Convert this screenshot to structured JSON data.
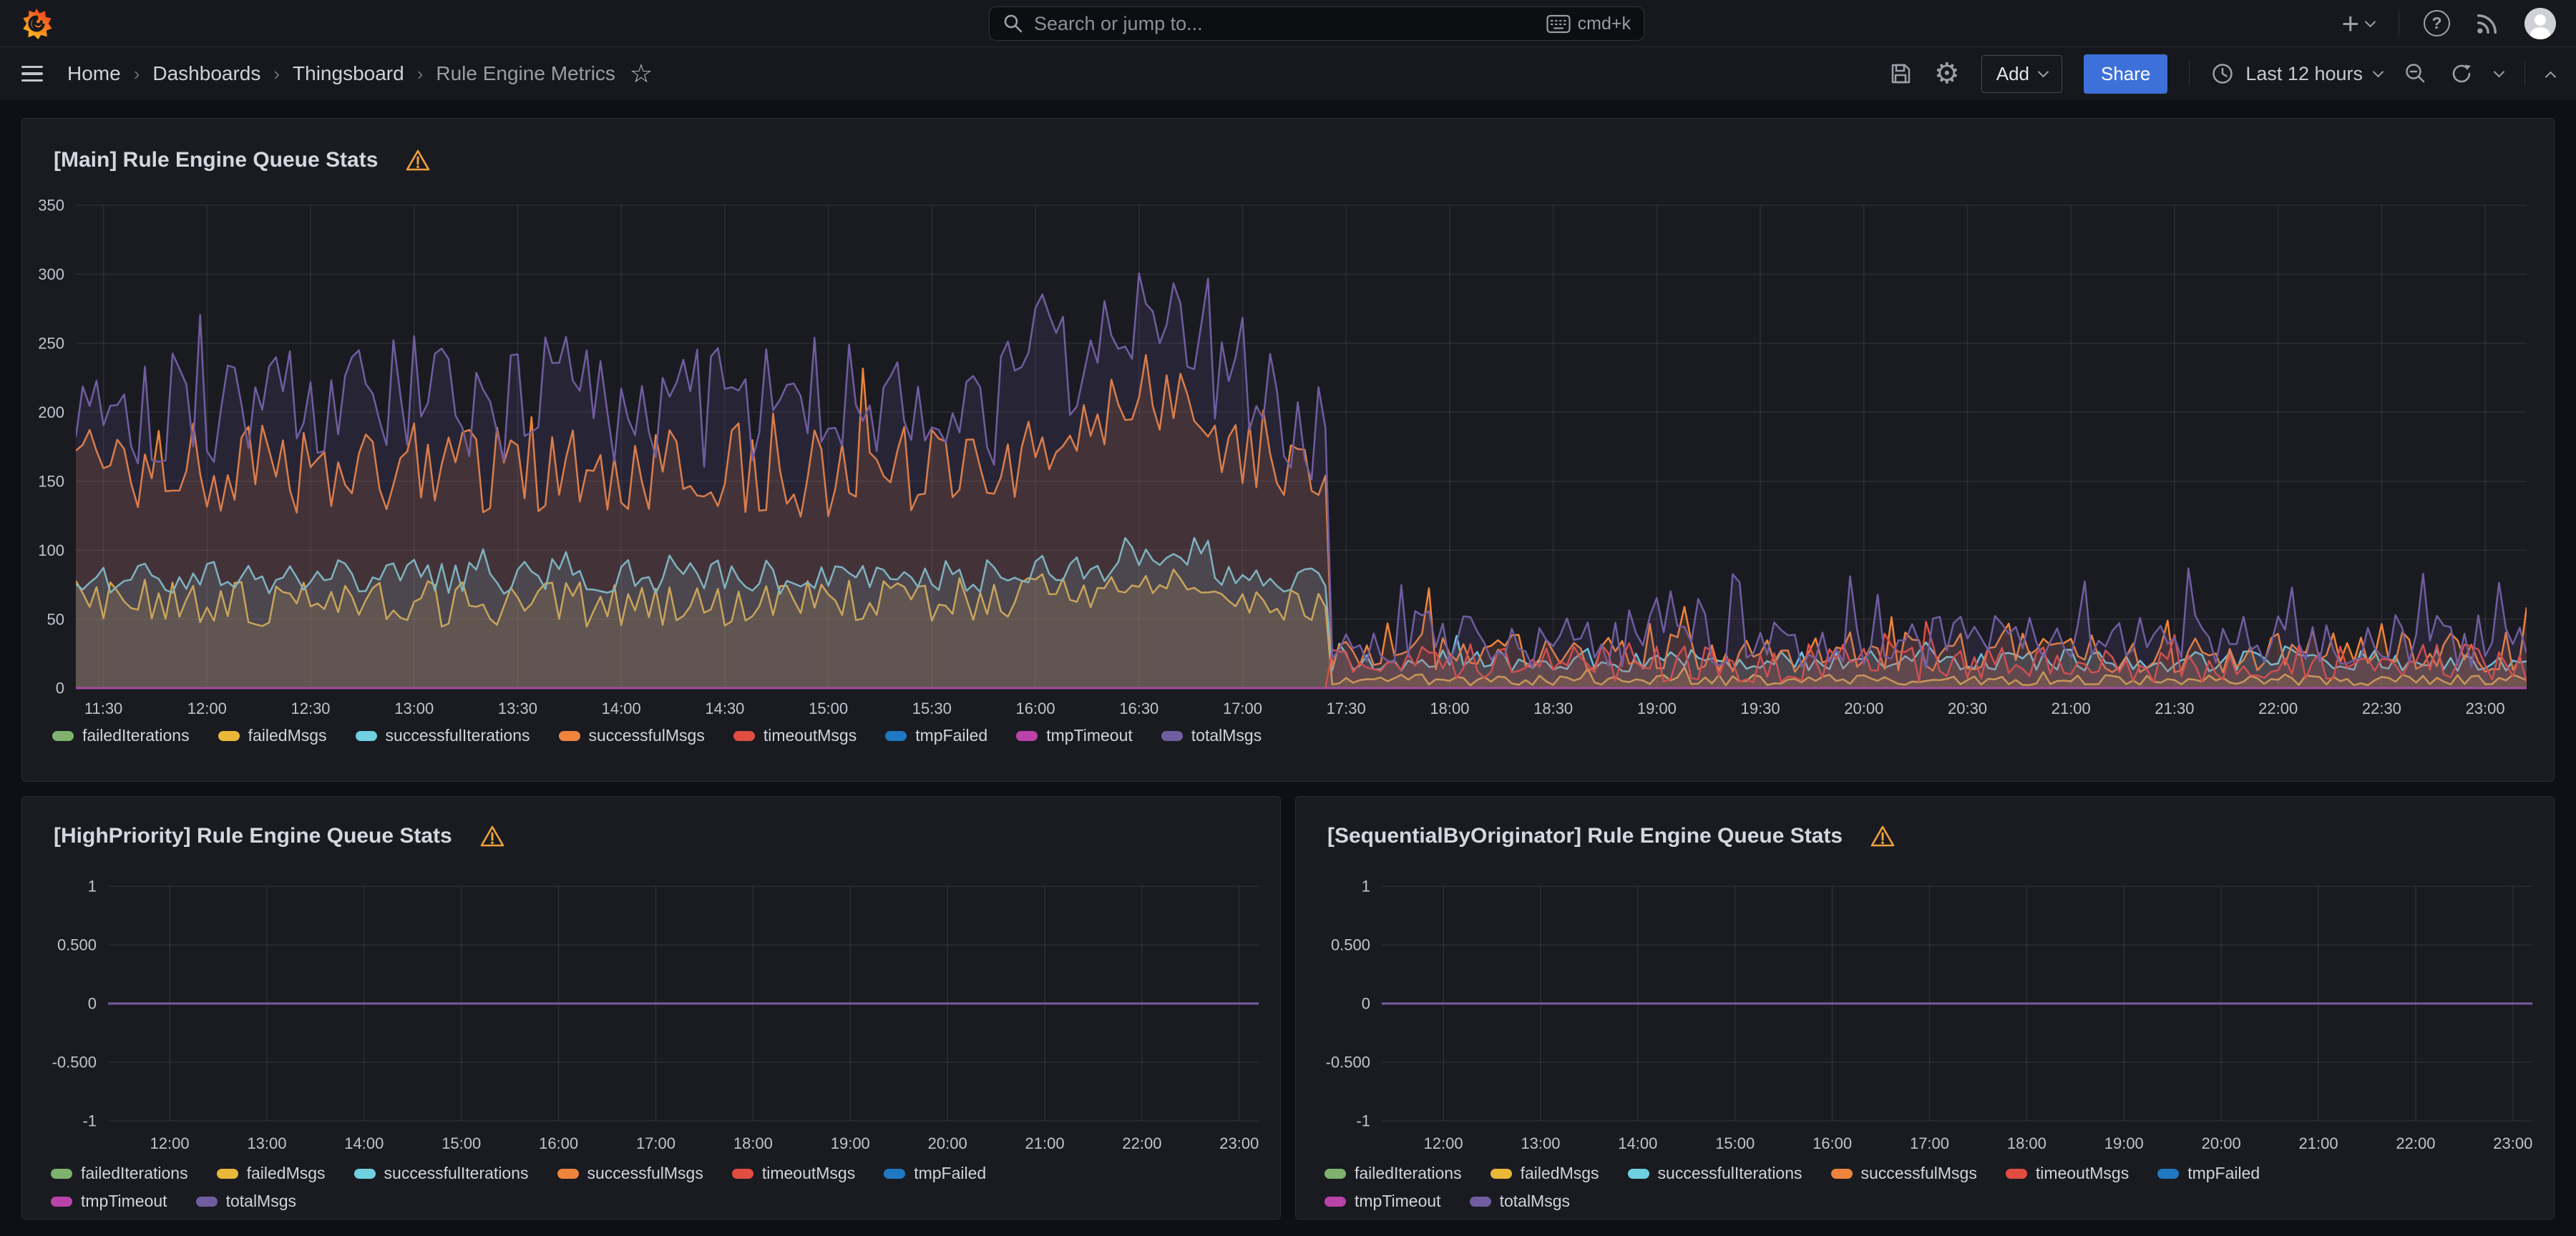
{
  "topbar": {
    "search_placeholder": "Search or jump to...",
    "shortcut": "cmd+k"
  },
  "breadcrumbs": {
    "separator": "›",
    "items": [
      {
        "label": "Home"
      },
      {
        "label": "Dashboards"
      },
      {
        "label": "Thingsboard"
      },
      {
        "label": "Rule Engine Metrics"
      }
    ]
  },
  "toolbar": {
    "add_label": "Add",
    "share_label": "Share",
    "time_range_label": "Last 12 hours"
  },
  "icons": {
    "gear": "⚙",
    "star": "☆",
    "plus": "+",
    "help": "?"
  },
  "colors": {
    "accent_blue": "#3D71D9",
    "warning_orange": "#F0A13C",
    "page_bg": "#0F1015",
    "panel_bg": "#1A1B21",
    "grid": "rgba(204,204,220,0.10)"
  },
  "chart_data": [
    {
      "id": "main",
      "type": "line",
      "title": "[Main] Rule Engine Queue Stats",
      "x_domain_minutes": [
        682,
        1392
      ],
      "step_minutes": 2,
      "x_tick_minutes": [
        690,
        720,
        750,
        780,
        810,
        840,
        870,
        900,
        930,
        960,
        990,
        1020,
        1050,
        1080,
        1110,
        1140,
        1170,
        1200,
        1230,
        1260,
        1290,
        1320,
        1350,
        1380
      ],
      "x_tick_labels": [
        "11:30",
        "12:00",
        "12:30",
        "13:00",
        "13:30",
        "14:00",
        "14:30",
        "15:00",
        "15:30",
        "16:00",
        "16:30",
        "17:00",
        "17:30",
        "18:00",
        "18:30",
        "19:00",
        "19:30",
        "20:00",
        "20:30",
        "21:00",
        "21:30",
        "22:00",
        "22:30",
        "23:00"
      ],
      "ylim": [
        0,
        350
      ],
      "y_tick_values": [
        0,
        50,
        100,
        150,
        200,
        250,
        300,
        350
      ],
      "y_tick_labels": [
        "0",
        "50",
        "100",
        "150",
        "200",
        "250",
        "300",
        "350"
      ],
      "grid": true,
      "legend_position": "bottom",
      "series": [
        {
          "name": "failedIterations",
          "color": "#7EB26D",
          "seed": 100,
          "fill_opacity": 0.16,
          "segments": [
            [
              682,
              1392,
              0,
              0,
              0,
              0
            ]
          ]
        },
        {
          "name": "failedMsgs",
          "color": "#EAB839",
          "seed": 104,
          "fill_opacity": 0.16,
          "segments": [
            [
              682,
              955,
              61,
              17,
              0.02,
              18
            ],
            [
              955,
              985,
              70,
              15,
              0,
              0
            ],
            [
              985,
              1012,
              80,
              12,
              0,
              0
            ],
            [
              1012,
              1046,
              58,
              14,
              0,
              0
            ],
            [
              1046,
              1392,
              6,
              4,
              0.06,
              8
            ]
          ]
        },
        {
          "name": "successfulIterations",
          "color": "#6ED0E0",
          "seed": 103,
          "fill_opacity": 0.16,
          "segments": [
            [
              682,
              955,
              81,
              13,
              0.02,
              18
            ],
            [
              955,
              985,
              88,
              12,
              0,
              0
            ],
            [
              985,
              1012,
              99,
              10,
              0,
              0
            ],
            [
              1012,
              1046,
              80,
              12,
              0,
              0
            ],
            [
              1046,
              1392,
              20,
              8,
              0.05,
              14
            ]
          ]
        },
        {
          "name": "successfulMsgs",
          "color": "#EF843C",
          "seed": 102,
          "fill_opacity": 0.16,
          "segments": [
            [
              682,
              700,
              160,
              32,
              0.03,
              40
            ],
            [
              700,
              955,
              158,
              34,
              0.04,
              50
            ],
            [
              955,
              985,
              180,
              32,
              0.04,
              45
            ],
            [
              985,
              1012,
              212,
              30,
              0.03,
              30
            ],
            [
              1012,
              1032,
              175,
              32,
              0,
              0
            ],
            [
              1032,
              1046,
              150,
              30,
              0,
              0
            ],
            [
              1046,
              1075,
              30,
              18,
              0.08,
              35
            ],
            [
              1075,
              1392,
              26,
              15,
              0.07,
              36
            ]
          ]
        },
        {
          "name": "timeoutMsgs",
          "color": "#E24D42",
          "seed": 105,
          "fill_opacity": 0.16,
          "segments": [
            [
              682,
              1046,
              0,
              0,
              0,
              0
            ],
            [
              1046,
              1392,
              18,
              14,
              0.06,
              30
            ]
          ]
        },
        {
          "name": "tmpFailed",
          "color": "#1F78C1",
          "seed": 106,
          "fill_opacity": 0.16,
          "segments": [
            [
              682,
              1392,
              0,
              0,
              0,
              0
            ]
          ]
        },
        {
          "name": "tmpTimeout",
          "color": "#BA43A9",
          "seed": 107,
          "fill_opacity": 0.16,
          "segments": [
            [
              682,
              1392,
              0,
              0,
              0,
              0
            ]
          ]
        },
        {
          "name": "totalMsgs",
          "color": "#705DA0",
          "seed": 101,
          "fill_opacity": 0.16,
          "segments": [
            [
              682,
              700,
              215,
              45,
              0.05,
              70
            ],
            [
              700,
              955,
              208,
              48,
              0.05,
              95
            ],
            [
              955,
              985,
              238,
              48,
              0.05,
              80
            ],
            [
              985,
              1012,
              275,
              45,
              0.06,
              65
            ],
            [
              1012,
              1032,
              225,
              45,
              0.05,
              60
            ],
            [
              1032,
              1046,
              185,
              35,
              0.02,
              40
            ],
            [
              1046,
              1075,
              42,
              24,
              0.1,
              45
            ],
            [
              1075,
              1392,
              34,
              20,
              0.08,
              48
            ]
          ]
        }
      ]
    },
    {
      "id": "high",
      "type": "line",
      "title": "[HighPriority] Rule Engine Queue Stats",
      "x_domain_minutes": [
        682,
        1392
      ],
      "step_minutes": 10,
      "x_tick_minutes": [
        720,
        780,
        840,
        900,
        960,
        1020,
        1080,
        1140,
        1200,
        1260,
        1320,
        1380
      ],
      "x_tick_labels": [
        "12:00",
        "13:00",
        "14:00",
        "15:00",
        "16:00",
        "17:00",
        "18:00",
        "19:00",
        "20:00",
        "21:00",
        "22:00",
        "23:00"
      ],
      "ylim": [
        -1,
        1
      ],
      "y_tick_values": [
        1,
        0.5,
        0,
        -0.5,
        -1
      ],
      "y_tick_labels": [
        "1",
        "0.500",
        "0",
        "-0.500",
        "-1"
      ],
      "grid": true,
      "legend_position": "bottom",
      "series": [
        {
          "name": "failedIterations",
          "color": "#7EB26D",
          "seed": 200,
          "fill_opacity": 0,
          "segments": [
            [
              682,
              1392,
              0,
              0,
              0,
              0
            ]
          ]
        },
        {
          "name": "failedMsgs",
          "color": "#EAB839",
          "seed": 201,
          "fill_opacity": 0,
          "segments": [
            [
              682,
              1392,
              0,
              0,
              0,
              0
            ]
          ]
        },
        {
          "name": "successfulIterations",
          "color": "#6ED0E0",
          "seed": 202,
          "fill_opacity": 0,
          "segments": [
            [
              682,
              1392,
              0,
              0,
              0,
              0
            ]
          ]
        },
        {
          "name": "successfulMsgs",
          "color": "#EF843C",
          "seed": 203,
          "fill_opacity": 0,
          "segments": [
            [
              682,
              1392,
              0,
              0,
              0,
              0
            ]
          ]
        },
        {
          "name": "timeoutMsgs",
          "color": "#E24D42",
          "seed": 204,
          "fill_opacity": 0,
          "segments": [
            [
              682,
              1392,
              0,
              0,
              0,
              0
            ]
          ]
        },
        {
          "name": "tmpFailed",
          "color": "#1F78C1",
          "seed": 205,
          "fill_opacity": 0,
          "segments": [
            [
              682,
              1392,
              0,
              0,
              0,
              0
            ]
          ]
        },
        {
          "name": "tmpTimeout",
          "color": "#BA43A9",
          "seed": 206,
          "fill_opacity": 0,
          "segments": [
            [
              682,
              1392,
              0,
              0,
              0,
              0
            ]
          ]
        },
        {
          "name": "totalMsgs",
          "color": "#705DA0",
          "seed": 207,
          "fill_opacity": 0,
          "segments": [
            [
              682,
              1392,
              0,
              0,
              0,
              0
            ]
          ]
        }
      ]
    },
    {
      "id": "seq",
      "type": "line",
      "title": "[SequentialByOriginator] Rule Engine Queue Stats",
      "x_domain_minutes": [
        682,
        1392
      ],
      "step_minutes": 10,
      "x_tick_minutes": [
        720,
        780,
        840,
        900,
        960,
        1020,
        1080,
        1140,
        1200,
        1260,
        1320,
        1380
      ],
      "x_tick_labels": [
        "12:00",
        "13:00",
        "14:00",
        "15:00",
        "16:00",
        "17:00",
        "18:00",
        "19:00",
        "20:00",
        "21:00",
        "22:00",
        "23:00"
      ],
      "ylim": [
        -1,
        1
      ],
      "y_tick_values": [
        1,
        0.5,
        0,
        -0.5,
        -1
      ],
      "y_tick_labels": [
        "1",
        "0.500",
        "0",
        "-0.500",
        "-1"
      ],
      "grid": true,
      "legend_position": "bottom",
      "series": [
        {
          "name": "failedIterations",
          "color": "#7EB26D",
          "seed": 300,
          "fill_opacity": 0,
          "segments": [
            [
              682,
              1392,
              0,
              0,
              0,
              0
            ]
          ]
        },
        {
          "name": "failedMsgs",
          "color": "#EAB839",
          "seed": 301,
          "fill_opacity": 0,
          "segments": [
            [
              682,
              1392,
              0,
              0,
              0,
              0
            ]
          ]
        },
        {
          "name": "successfulIterations",
          "color": "#6ED0E0",
          "seed": 302,
          "fill_opacity": 0,
          "segments": [
            [
              682,
              1392,
              0,
              0,
              0,
              0
            ]
          ]
        },
        {
          "name": "successfulMsgs",
          "color": "#EF843C",
          "seed": 303,
          "fill_opacity": 0,
          "segments": [
            [
              682,
              1392,
              0,
              0,
              0,
              0
            ]
          ]
        },
        {
          "name": "timeoutMsgs",
          "color": "#E24D42",
          "seed": 304,
          "fill_opacity": 0,
          "segments": [
            [
              682,
              1392,
              0,
              0,
              0,
              0
            ]
          ]
        },
        {
          "name": "tmpFailed",
          "color": "#1F78C1",
          "seed": 305,
          "fill_opacity": 0,
          "segments": [
            [
              682,
              1392,
              0,
              0,
              0,
              0
            ]
          ]
        },
        {
          "name": "tmpTimeout",
          "color": "#BA43A9",
          "seed": 306,
          "fill_opacity": 0,
          "segments": [
            [
              682,
              1392,
              0,
              0,
              0,
              0
            ]
          ]
        },
        {
          "name": "totalMsgs",
          "color": "#705DA0",
          "seed": 307,
          "fill_opacity": 0,
          "segments": [
            [
              682,
              1392,
              0,
              0,
              0,
              0
            ]
          ]
        }
      ]
    }
  ]
}
